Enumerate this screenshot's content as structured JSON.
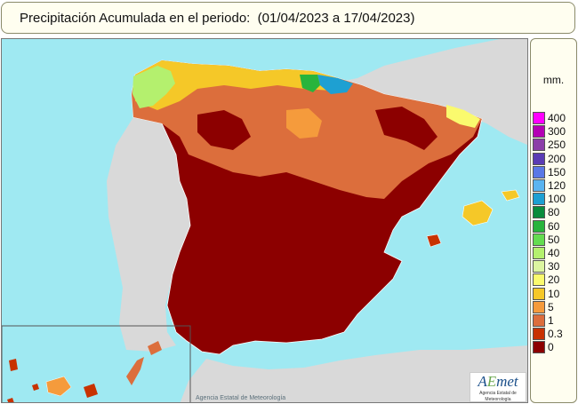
{
  "title": "Precipitación Acumulada en el periodo:  (01/04/2023 a 17/04/2023)",
  "credit": "Agencia Estatal de Meteorología",
  "logo": {
    "text_a": "A",
    "text_e": "E",
    "text_rest": "met",
    "subtitle": "Agencia Estatal de Meteorología"
  },
  "legend": {
    "unit": "mm.",
    "items": [
      {
        "label": "400",
        "color": "#ff00ff"
      },
      {
        "label": "300",
        "color": "#b400b4"
      },
      {
        "label": "250",
        "color": "#8c3fa8"
      },
      {
        "label": "200",
        "color": "#5a3cb4"
      },
      {
        "label": "150",
        "color": "#5a78e6"
      },
      {
        "label": "120",
        "color": "#5ab4f0"
      },
      {
        "label": "100",
        "color": "#1ea0d2"
      },
      {
        "label": "80",
        "color": "#0a8c3c"
      },
      {
        "label": "60",
        "color": "#28b43c"
      },
      {
        "label": "50",
        "color": "#64dc50"
      },
      {
        "label": "40",
        "color": "#b4f06e"
      },
      {
        "label": "30",
        "color": "#dcf5a0"
      },
      {
        "label": "20",
        "color": "#fafa6e"
      },
      {
        "label": "10",
        "color": "#f5c828"
      },
      {
        "label": "5",
        "color": "#f59b3c"
      },
      {
        "label": "1",
        "color": "#dc6e3c"
      },
      {
        "label": "0.3",
        "color": "#c83200"
      },
      {
        "label": "0",
        "color": "#8c0000"
      }
    ]
  },
  "map": {
    "sea_color": "#9fe9f2",
    "foreign_land_color": "#d9d9d9",
    "dry_color": "#8c0000",
    "regions": [
      "Península Ibérica",
      "Islas Baleares",
      "Islas Canarias"
    ]
  }
}
